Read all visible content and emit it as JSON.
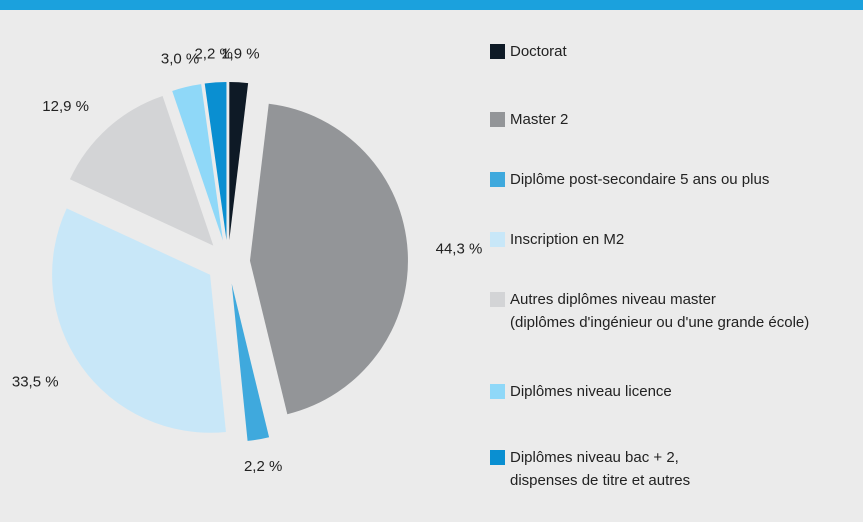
{
  "chart_data": {
    "type": "pie",
    "categories": [
      "Doctorat",
      "Master 2",
      "Diplôme post-secondaire 5 ans ou plus",
      "Inscription en M2",
      "Autres diplômes niveau master\n(diplômes d'ingénieur ou d'une grande école)",
      "Diplômes niveau licence",
      "Diplômes niveau bac + 2,\ndispenses de titre et autres"
    ],
    "values": [
      1.9,
      44.3,
      2.2,
      33.5,
      12.9,
      3.0,
      2.2
    ],
    "value_labels": [
      "1,9 %",
      "44,3 %",
      "2,2 %",
      "33,5 %",
      "12,9 %",
      "3,0 %",
      "2,2 %"
    ],
    "colors": [
      "#0e1a26",
      "#939598",
      "#3fa9dd",
      "#c8e7f8",
      "#d3d4d6",
      "#8fd8f8",
      "#0a8fd1"
    ],
    "legend": "right"
  }
}
